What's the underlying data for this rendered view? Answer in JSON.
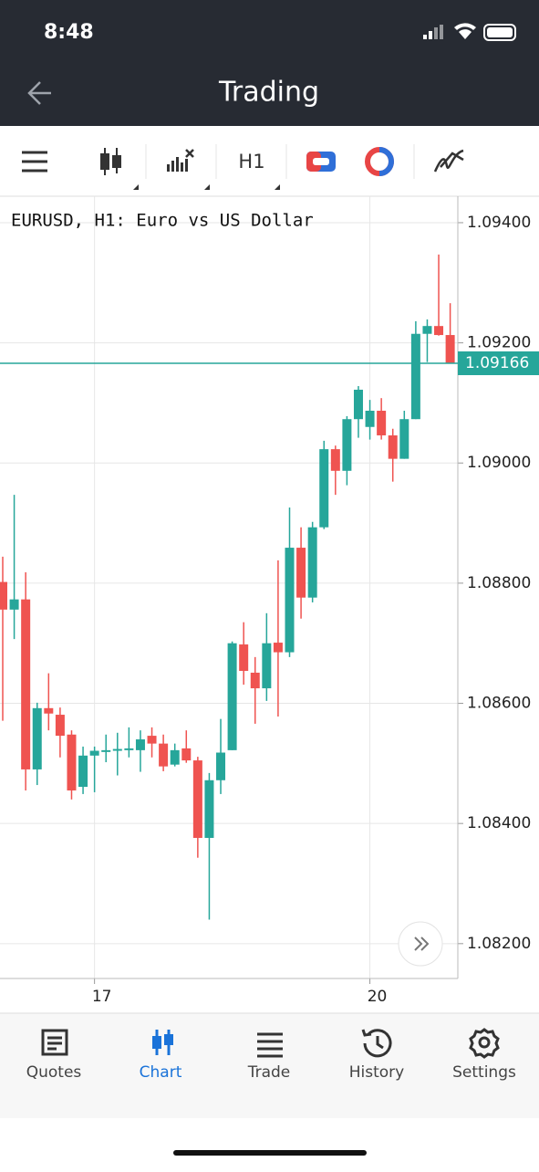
{
  "status_bar": {
    "time": "8:48"
  },
  "header": {
    "title": "Trading"
  },
  "toolbar": {
    "timeframe": "H1"
  },
  "chart_data": {
    "type": "candlestick",
    "title": "EURUSD, H1: Euro vs US Dollar",
    "categories": [
      null,
      null,
      null,
      null,
      null,
      null,
      null,
      null,
      "17",
      null,
      null,
      null,
      null,
      null,
      null,
      null,
      null,
      null,
      null,
      null,
      null,
      null,
      null,
      null,
      null,
      null,
      null,
      null,
      null,
      null,
      null,
      null,
      "20",
      null,
      null,
      null,
      null,
      null,
      null,
      null
    ],
    "open": [
      1.08802,
      1.08756,
      1.08773,
      1.0849,
      1.08592,
      1.08581,
      1.08548,
      1.08461,
      1.08513,
      1.08519,
      1.08521,
      1.08522,
      1.08522,
      1.08546,
      1.08533,
      1.08498,
      1.08525,
      1.08505,
      1.08376,
      1.08472,
      1.08522,
      1.08698,
      1.08651,
      1.08625,
      1.08701,
      1.08685,
      1.08859,
      1.08776,
      1.08893,
      1.09023,
      1.08987,
      1.09073,
      1.0906,
      1.09087,
      1.09046,
      1.09007,
      1.09073,
      1.09215,
      1.09228,
      1.09213
    ],
    "high": [
      1.08844,
      1.08947,
      1.08818,
      1.08601,
      1.0865,
      1.08593,
      1.08555,
      1.08528,
      1.08528,
      1.08548,
      1.08551,
      1.0856,
      1.08555,
      1.0856,
      1.08548,
      1.08533,
      1.08555,
      1.08511,
      1.08484,
      1.08574,
      1.08703,
      1.08735,
      1.08677,
      1.0875,
      1.08838,
      1.08926,
      1.08893,
      1.08902,
      1.09037,
      1.09029,
      1.09078,
      1.09128,
      1.09105,
      1.09108,
      1.09057,
      1.09087,
      1.09236,
      1.09239,
      1.09347,
      1.09266
    ],
    "low": [
      1.08571,
      1.08707,
      1.08455,
      1.08464,
      1.08555,
      1.0851,
      1.0844,
      1.08449,
      1.08452,
      1.08502,
      1.0848,
      1.0851,
      1.08486,
      1.0851,
      1.08487,
      1.08495,
      1.08501,
      1.08343,
      1.0824,
      1.08449,
      1.08522,
      1.08631,
      1.08566,
      1.08604,
      1.08578,
      1.08677,
      1.08741,
      1.08768,
      1.0889,
      1.08947,
      1.08963,
      1.09042,
      1.09039,
      1.09039,
      1.08969,
      1.09007,
      1.09073,
      1.09168,
      1.09212,
      1.09166
    ],
    "close": [
      1.08756,
      1.08773,
      1.0849,
      1.08592,
      1.08583,
      1.08546,
      1.08455,
      1.08513,
      1.08521,
      1.08522,
      1.08524,
      1.08525,
      1.0854,
      1.08533,
      1.08495,
      1.08522,
      1.08505,
      1.08376,
      1.08472,
      1.08518,
      1.087,
      1.08654,
      1.08625,
      1.087,
      1.08685,
      1.08859,
      1.08776,
      1.08893,
      1.09023,
      1.08987,
      1.09073,
      1.09122,
      1.09087,
      1.09046,
      1.09007,
      1.09073,
      1.09215,
      1.09228,
      1.09213,
      1.09166
    ],
    "up_color": "#26a69a",
    "down_color": "#ef5350",
    "current_price": {
      "value": 1.09166,
      "label": "1.09166"
    },
    "ylim": [
      1.08142,
      1.09444
    ],
    "yticks": [
      {
        "value": 1.082,
        "label": "1.08200"
      },
      {
        "value": 1.084,
        "label": "1.08400"
      },
      {
        "value": 1.086,
        "label": "1.08600"
      },
      {
        "value": 1.088,
        "label": "1.08800"
      },
      {
        "value": 1.09,
        "label": "1.09000"
      },
      {
        "value": 1.092,
        "label": "1.09200"
      },
      {
        "value": 1.094,
        "label": "1.09400"
      }
    ],
    "grid": true
  },
  "tabs": [
    {
      "label": "Quotes",
      "active": false
    },
    {
      "label": "Chart",
      "active": true
    },
    {
      "label": "Trade",
      "active": false
    },
    {
      "label": "History",
      "active": false
    },
    {
      "label": "Settings",
      "active": false
    }
  ]
}
